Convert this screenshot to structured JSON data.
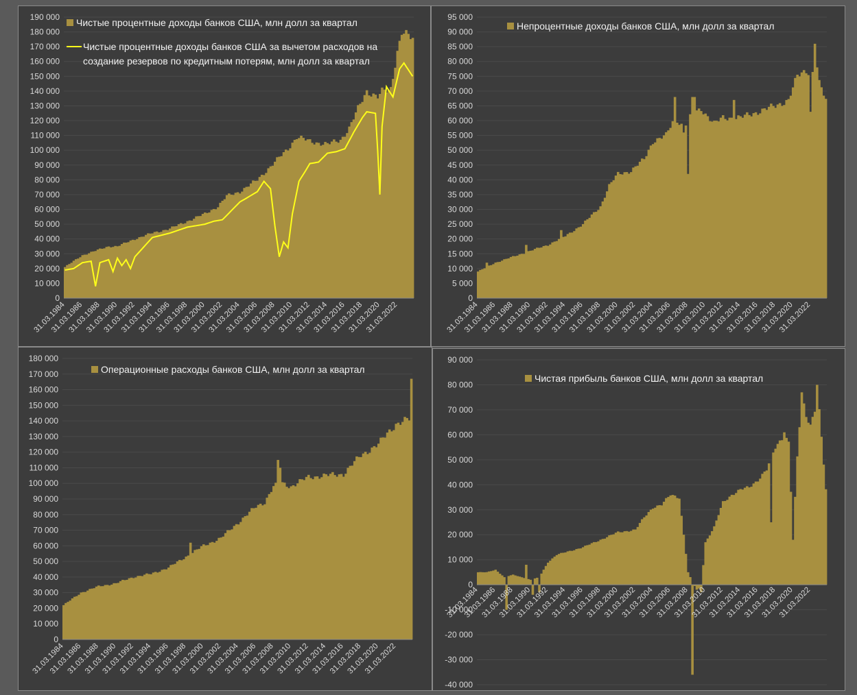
{
  "colors": {
    "bar": "#a89040",
    "line": "#ffff1a",
    "axis_text": "#d9d9d9",
    "legend_text": "#f2f2f2",
    "panel_bg": "#3c3c3c"
  },
  "x_tick_labels": [
    "31.03.1984",
    "31.03.1986",
    "31.03.1988",
    "31.03.1990",
    "31.03.1992",
    "31.03.1994",
    "31.03.1996",
    "31.03.1998",
    "31.03.2000",
    "31.03.2002",
    "31.03.2004",
    "31.03.2006",
    "31.03.2008",
    "31.03.2010",
    "31.03.2012",
    "31.03.2014",
    "31.03.2016",
    "31.03.2018",
    "31.03.2020",
    "31.03.2022"
  ],
  "chart_data": [
    {
      "type": "bar",
      "legend": [
        "Чистые процентные доходы банков  США, млн долл за квартал",
        "Чистые процентные доходы банков США за вычетом расходов на",
        "создание резервов по кредитным потерям, млн долл за квартал"
      ],
      "ylim": [
        0,
        190000
      ],
      "y_ticks": [
        "0",
        "10 000",
        "20 000",
        "30 000",
        "40 000",
        "50 000",
        "60 000",
        "70 000",
        "80 000",
        "90 000",
        "100 000",
        "110 000",
        "120 000",
        "130 000",
        "140 000",
        "150 000",
        "160 000",
        "170 000",
        "180 000",
        "190 000"
      ],
      "x_start": 1984.0,
      "bar_knots": [
        [
          1984,
          21000
        ],
        [
          1986,
          29000
        ],
        [
          1988,
          33000
        ],
        [
          1989,
          35000
        ],
        [
          1990,
          35000
        ],
        [
          1992,
          40000
        ],
        [
          1994,
          44000
        ],
        [
          1996,
          47000
        ],
        [
          1998,
          52000
        ],
        [
          2000,
          57000
        ],
        [
          2001.5,
          62000
        ],
        [
          2002.5,
          69000
        ],
        [
          2004,
          72000
        ],
        [
          2006,
          80000
        ],
        [
          2007,
          86000
        ],
        [
          2008,
          92000
        ],
        [
          2009.5,
          101000
        ],
        [
          2010.5,
          109000
        ],
        [
          2012,
          106000
        ],
        [
          2014,
          104000
        ],
        [
          2015.5,
          107000
        ],
        [
          2016.5,
          115000
        ],
        [
          2017.5,
          128000
        ],
        [
          2018.5,
          140000
        ],
        [
          2019.8,
          136000
        ],
        [
          2020.3,
          140000
        ],
        [
          2021.2,
          140000
        ],
        [
          2022.0,
          167000
        ],
        [
          2022.5,
          180000
        ],
        [
          2023.75,
          175000
        ]
      ],
      "line_knots": [
        [
          1984,
          19000
        ],
        [
          1985,
          20000
        ],
        [
          1986,
          24000
        ],
        [
          1987,
          25000
        ],
        [
          1987.5,
          8000
        ],
        [
          1988,
          24000
        ],
        [
          1989,
          26000
        ],
        [
          1989.5,
          18000
        ],
        [
          1990,
          27000
        ],
        [
          1990.5,
          22000
        ],
        [
          1991,
          26000
        ],
        [
          1991.5,
          20000
        ],
        [
          1992,
          28000
        ],
        [
          1994,
          41000
        ],
        [
          1996,
          44000
        ],
        [
          1998,
          48000
        ],
        [
          2000,
          50000
        ],
        [
          2001,
          52000
        ],
        [
          2002,
          53000
        ],
        [
          2004,
          65000
        ],
        [
          2006,
          72000
        ],
        [
          2006.75,
          79000
        ],
        [
          2007.5,
          74000
        ],
        [
          2008.0,
          49000
        ],
        [
          2008.5,
          28000
        ],
        [
          2009.0,
          38000
        ],
        [
          2009.5,
          34000
        ],
        [
          2010.0,
          57000
        ],
        [
          2010.75,
          79000
        ],
        [
          2011.5,
          86000
        ],
        [
          2012,
          91000
        ],
        [
          2013,
          92000
        ],
        [
          2014,
          98000
        ],
        [
          2015,
          99000
        ],
        [
          2016,
          101000
        ],
        [
          2017,
          112000
        ],
        [
          2018.0,
          122000
        ],
        [
          2018.5,
          126000
        ],
        [
          2019.5,
          125000
        ],
        [
          2019.75,
          100000
        ],
        [
          2020.0,
          70000
        ],
        [
          2020.25,
          116000
        ],
        [
          2020.75,
          143000
        ],
        [
          2021.5,
          136000
        ],
        [
          2022.25,
          155000
        ],
        [
          2022.75,
          159000
        ],
        [
          2023.75,
          150000
        ]
      ]
    },
    {
      "type": "bar",
      "legend": [
        "Непроцентные доходы банков США, млн долл за квартал"
      ],
      "ylim": [
        0,
        95000
      ],
      "y_ticks": [
        "0",
        "5 000",
        "10 000",
        "15 000",
        "20 000",
        "25 000",
        "30 000",
        "35 000",
        "40 000",
        "45 000",
        "50 000",
        "55 000",
        "60 000",
        "65 000",
        "70 000",
        "75 000",
        "80 000",
        "85 000",
        "90 000",
        "95 000"
      ],
      "x_start": 1984.0,
      "bar_knots": [
        [
          1984,
          9000
        ],
        [
          1986,
          12000
        ],
        [
          1988,
          14000
        ],
        [
          1990,
          16000
        ],
        [
          1992,
          18000
        ],
        [
          1994,
          21000
        ],
        [
          1996,
          25000
        ],
        [
          1998,
          31000
        ],
        [
          1999,
          38000
        ],
        [
          2000,
          42000
        ],
        [
          2001.5,
          43000
        ],
        [
          2003,
          47000
        ],
        [
          2004,
          53000
        ],
        [
          2005.5,
          55000
        ],
        [
          2006.5,
          61000
        ],
        [
          2007.5,
          58000
        ],
        [
          2008.5,
          62000
        ],
        [
          2009.5,
          64000
        ],
        [
          2011,
          59000
        ],
        [
          2012,
          61000
        ],
        [
          2014,
          61000
        ],
        [
          2016,
          63000
        ],
        [
          2018,
          65000
        ],
        [
          2019.5,
          67000
        ],
        [
          2020.5,
          75000
        ],
        [
          2021.5,
          77000
        ],
        [
          2022.5,
          76000
        ],
        [
          2023.75,
          67000
        ]
      ],
      "spikes": [
        [
          1985.0,
          12000
        ],
        [
          1989.5,
          18000
        ],
        [
          1993.5,
          23000
        ],
        [
          2006.5,
          68000
        ],
        [
          2007.5,
          56000
        ],
        [
          2008.0,
          42000
        ],
        [
          2008.5,
          68000
        ],
        [
          2008.75,
          68000
        ],
        [
          2013.25,
          67000
        ],
        [
          2022.0,
          63000
        ],
        [
          2022.5,
          86000
        ],
        [
          2022.75,
          78000
        ]
      ]
    },
    {
      "type": "bar",
      "legend": [
        "Операционные расходы банков США, млн долл за квартал"
      ],
      "ylim": [
        0,
        180000
      ],
      "y_ticks": [
        "0",
        "10 000",
        "20 000",
        "30 000",
        "40 000",
        "50 000",
        "60 000",
        "70 000",
        "80 000",
        "90 000",
        "100 000",
        "110 000",
        "120 000",
        "130 000",
        "140 000",
        "150 000",
        "160 000",
        "170 000",
        "180 000"
      ],
      "x_start": 1984.0,
      "bar_knots": [
        [
          1984,
          22000
        ],
        [
          1986,
          30000
        ],
        [
          1988,
          34000
        ],
        [
          1990,
          36000
        ],
        [
          1992,
          40000
        ],
        [
          1994,
          42000
        ],
        [
          1996,
          46000
        ],
        [
          1998,
          53000
        ],
        [
          2000,
          60000
        ],
        [
          2002,
          65000
        ],
        [
          2004,
          75000
        ],
        [
          2006,
          85000
        ],
        [
          2007,
          88000
        ],
        [
          2008,
          98000
        ],
        [
          2009,
          100000
        ],
        [
          2010,
          98000
        ],
        [
          2011,
          101000
        ],
        [
          2012,
          104000
        ],
        [
          2014,
          105000
        ],
        [
          2016,
          106000
        ],
        [
          2018,
          118000
        ],
        [
          2020,
          125000
        ],
        [
          2021,
          132000
        ],
        [
          2022,
          138000
        ],
        [
          2023.5,
          141000
        ],
        [
          2023.75,
          167000
        ]
      ],
      "spikes": [
        [
          1998.5,
          62000
        ],
        [
          2008.5,
          115000
        ],
        [
          2008.75,
          110000
        ],
        [
          2023.75,
          167000
        ]
      ]
    },
    {
      "type": "bar",
      "legend": [
        "Чистая прибыль банков США, млн долл за квартал"
      ],
      "ylim": [
        -40000,
        90000
      ],
      "y_ticks": [
        "-40 000",
        "-30 000",
        "-20 000",
        "-10 000",
        "0",
        "10 000",
        "20 000",
        "30 000",
        "40 000",
        "50 000",
        "60 000",
        "70 000",
        "80 000",
        "90 000"
      ],
      "x_start": 1984.0,
      "bar_knots": [
        [
          1984,
          5000
        ],
        [
          1985,
          5000
        ],
        [
          1986,
          6000
        ],
        [
          1987,
          3000
        ],
        [
          1988,
          4000
        ],
        [
          1989,
          3000
        ],
        [
          1990,
          2000
        ],
        [
          1991,
          3000
        ],
        [
          1992,
          9000
        ],
        [
          1993,
          12000
        ],
        [
          1994,
          13000
        ],
        [
          1996,
          15000
        ],
        [
          1998,
          18000
        ],
        [
          2000,
          21000
        ],
        [
          2002,
          22000
        ],
        [
          2003,
          27000
        ],
        [
          2004,
          31000
        ],
        [
          2005,
          32000
        ],
        [
          2006,
          36000
        ],
        [
          2007,
          35000
        ],
        [
          2007.5,
          20000
        ],
        [
          2008,
          5000
        ],
        [
          2008.5,
          1000
        ],
        [
          2009,
          -2000
        ],
        [
          2009.5,
          -1000
        ],
        [
          2010,
          17000
        ],
        [
          2011,
          23000
        ],
        [
          2012,
          33000
        ],
        [
          2013,
          36000
        ],
        [
          2014,
          38000
        ],
        [
          2015,
          39000
        ],
        [
          2016,
          42000
        ],
        [
          2017,
          46000
        ],
        [
          2018,
          55000
        ],
        [
          2019,
          60000
        ],
        [
          2019.5,
          57000
        ],
        [
          2020.0,
          18000
        ],
        [
          2020.5,
          51000
        ],
        [
          2021.0,
          76000
        ],
        [
          2021.5,
          68000
        ],
        [
          2022.0,
          64000
        ],
        [
          2022.5,
          70000
        ],
        [
          2023.0,
          69000
        ],
        [
          2023.75,
          38000
        ]
      ],
      "spikes": [
        [
          1987.25,
          -10000
        ],
        [
          1989.5,
          8000
        ],
        [
          1990.25,
          -4000
        ],
        [
          1991.0,
          -3000
        ],
        [
          2008.5,
          -36000
        ],
        [
          2009.5,
          -3000
        ],
        [
          2017.5,
          25000
        ],
        [
          2019.0,
          61000
        ],
        [
          2020.0,
          18000
        ],
        [
          2021.0,
          77000
        ],
        [
          2022.75,
          80000
        ]
      ]
    }
  ]
}
